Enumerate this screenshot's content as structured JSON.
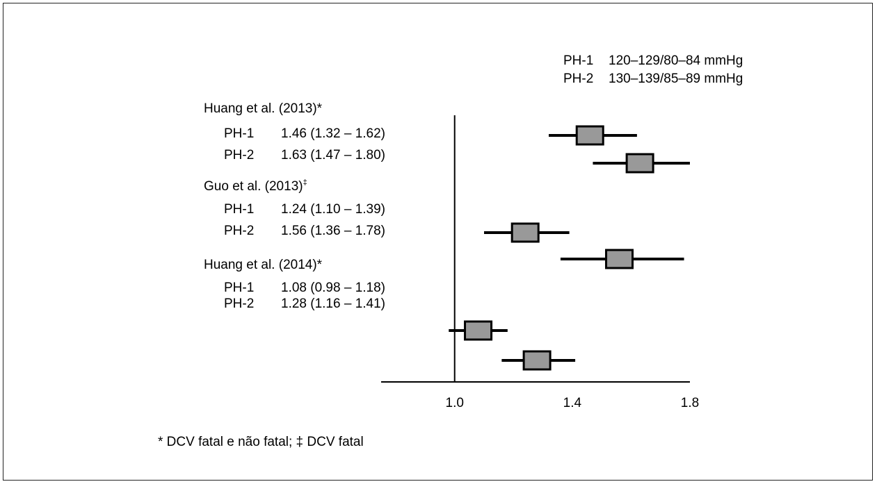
{
  "legend": [
    {
      "code": "PH-1",
      "range": "120–129/80–84 mmHg"
    },
    {
      "code": "PH-2",
      "range": "130–139/85–89 mmHg"
    }
  ],
  "footnote": "* DCV fatal e não fatal; ‡ DCV fatal",
  "chart_data": {
    "type": "forest",
    "title": "",
    "xlabel": "",
    "xlim": [
      0.75,
      1.8
    ],
    "xticks": [
      "1.0",
      "1.4",
      "1.8"
    ],
    "reference_line": 1.0,
    "colors": {
      "box": "#999999",
      "line": "#000000"
    },
    "studies": [
      {
        "name": "Huang et al. (2013)",
        "mark": "*",
        "rows": [
          {
            "code": "PH-1",
            "label": "1.46 (1.32 – 1.62)",
            "estimate": 1.46,
            "lower": 1.32,
            "upper": 1.62
          },
          {
            "code": "PH-2",
            "label": "1.63 (1.47 – 1.80)",
            "estimate": 1.63,
            "lower": 1.47,
            "upper": 1.8
          }
        ]
      },
      {
        "name": "Guo et al. (2013)",
        "mark": "‡",
        "rows": [
          {
            "code": "PH-1",
            "label": "1.24 (1.10 – 1.39)",
            "estimate": 1.24,
            "lower": 1.1,
            "upper": 1.39
          },
          {
            "code": "PH-2",
            "label": "1.56 (1.36 – 1.78)",
            "estimate": 1.56,
            "lower": 1.36,
            "upper": 1.78
          }
        ]
      },
      {
        "name": "Huang et al. (2014)",
        "mark": "*",
        "rows": [
          {
            "code": "PH-1",
            "label": "1.08 (0.98 – 1.18)",
            "estimate": 1.08,
            "lower": 0.98,
            "upper": 1.18
          },
          {
            "code": "PH-2",
            "label": "1.28 (1.16 – 1.41)",
            "estimate": 1.28,
            "lower": 1.16,
            "upper": 1.41
          }
        ]
      }
    ]
  }
}
